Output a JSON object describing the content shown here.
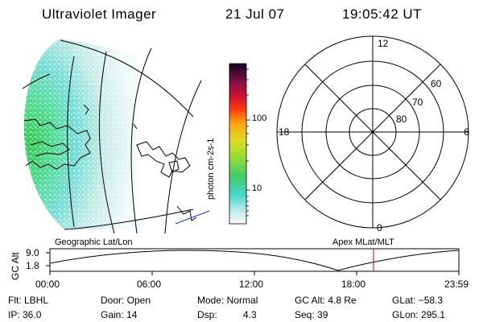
{
  "header": {
    "instrument": "Ultraviolet Imager",
    "date": "21 Jul 07",
    "time": "19:05:42 UT"
  },
  "geographic_panel": {
    "label": "Geographic Lat/Lon"
  },
  "apex_panel": {
    "label": "Apex MLat/MLT",
    "mlt_labels": {
      "top": "12",
      "left": "18",
      "right": "6",
      "bottom": "0"
    },
    "mlat_labels": [
      "60",
      "70",
      "80"
    ]
  },
  "colorbar": {
    "unit_label": "photon cm-2s-1",
    "ticks": [
      "100",
      "10"
    ]
  },
  "altitude_plot": {
    "ylabel": "GC Alt",
    "y_ticks": [
      "9.0",
      "1.8"
    ],
    "x_ticks": [
      "00:00",
      "06:00",
      "12:00",
      "18:00",
      "23:59"
    ],
    "marker_color": "#cc0000"
  },
  "status": {
    "flt": "Flt: LBHL",
    "door": "Door: Open",
    "mode": "Mode: Normal",
    "gc_alt": "GC Alt: 4.8 Re",
    "glat": "GLat: −58.3",
    "ip": "IP: 36.0",
    "gain": "Gain: 14",
    "dsp_label": "Dsp:",
    "dsp_value": "4.3",
    "seq": "Seq: 39",
    "glon": "GLon: 295.1"
  }
}
